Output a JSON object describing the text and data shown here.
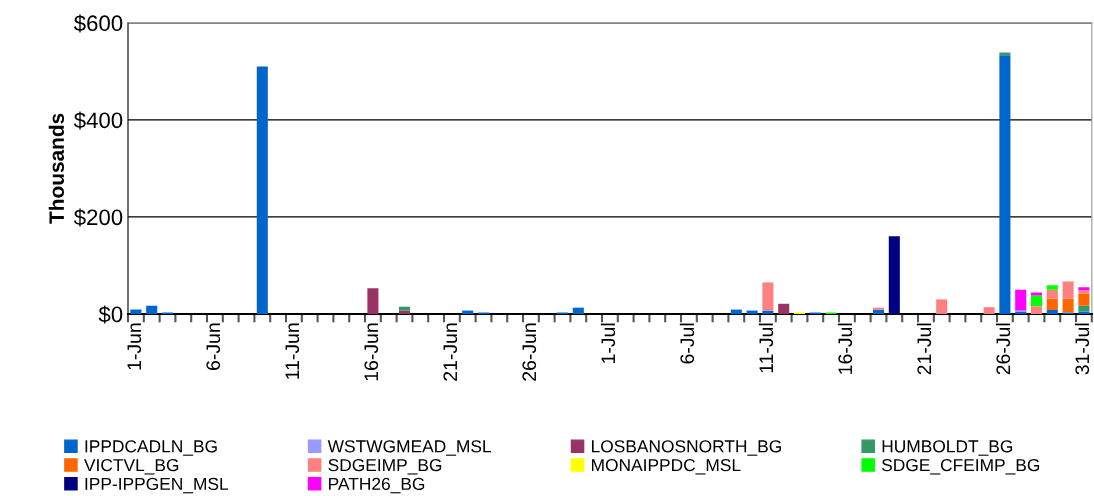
{
  "chart_data": {
    "type": "bar",
    "stacked": true,
    "ylabel": "Thousands",
    "categories": [
      "1-Jun",
      null,
      null,
      null,
      null,
      "6-Jun",
      null,
      null,
      null,
      null,
      "11-Jun",
      null,
      null,
      null,
      null,
      "16-Jun",
      null,
      null,
      null,
      null,
      "21-Jun",
      null,
      null,
      null,
      null,
      "26-Jun",
      null,
      null,
      null,
      null,
      "1-Jul",
      null,
      null,
      null,
      null,
      "6-Jul",
      null,
      null,
      null,
      null,
      "11-Jul",
      null,
      null,
      null,
      null,
      "16-Jul",
      null,
      null,
      null,
      null,
      "21-Jul",
      null,
      null,
      null,
      null,
      "26-Jul",
      null,
      null,
      null,
      null,
      "31-Jul"
    ],
    "ylim": [
      0,
      600
    ],
    "yticks": [
      {
        "value": 0,
        "label": "$0"
      },
      {
        "value": 200,
        "label": "$200"
      },
      {
        "value": 400,
        "label": "$400"
      },
      {
        "value": 600,
        "label": "$600"
      }
    ],
    "grid": "y",
    "legend": "bottom",
    "series": [
      {
        "name": "IPPDCADLN_BG",
        "color": "#0066cc",
        "values": [
          9,
          17,
          3,
          null,
          null,
          null,
          null,
          null,
          510,
          null,
          null,
          null,
          null,
          null,
          null,
          null,
          null,
          null,
          null,
          null,
          null,
          7,
          3,
          null,
          null,
          null,
          null,
          3,
          13,
          null,
          null,
          null,
          null,
          null,
          null,
          null,
          null,
          null,
          9,
          7,
          7,
          null,
          null,
          3,
          null,
          null,
          null,
          9,
          null,
          null,
          null,
          null,
          null,
          null,
          null,
          533,
          5,
          null,
          8,
          3,
          5
        ]
      },
      {
        "name": "WSTWGMEAD_MSL",
        "color": "#9999ff",
        "values": [
          null,
          null,
          null,
          null,
          null,
          null,
          null,
          null,
          null,
          null,
          null,
          null,
          null,
          null,
          null,
          null,
          null,
          null,
          null,
          null,
          null,
          null,
          null,
          null,
          null,
          null,
          null,
          null,
          null,
          null,
          null,
          null,
          null,
          null,
          null,
          null,
          null,
          null,
          null,
          null,
          null,
          null,
          null,
          null,
          null,
          null,
          null,
          null,
          null,
          null,
          null,
          null,
          null,
          null,
          null,
          null,
          2,
          null,
          null,
          null,
          null
        ]
      },
      {
        "name": "LOSBANOSNORTH_BG",
        "color": "#993366",
        "values": [
          null,
          null,
          null,
          null,
          null,
          null,
          null,
          null,
          null,
          null,
          null,
          null,
          null,
          null,
          null,
          53,
          null,
          7,
          null,
          null,
          null,
          null,
          null,
          null,
          null,
          null,
          null,
          null,
          null,
          null,
          null,
          null,
          null,
          null,
          null,
          null,
          null,
          null,
          null,
          null,
          null,
          21,
          null,
          null,
          null,
          null,
          null,
          null,
          null,
          null,
          null,
          null,
          null,
          null,
          null,
          null,
          null,
          null,
          null,
          null,
          null
        ]
      },
      {
        "name": "HUMBOLDT_BG",
        "color": "#339966",
        "values": [
          null,
          null,
          null,
          null,
          null,
          null,
          null,
          null,
          null,
          null,
          null,
          null,
          null,
          null,
          null,
          null,
          null,
          8,
          null,
          null,
          null,
          null,
          null,
          null,
          null,
          null,
          null,
          null,
          null,
          null,
          null,
          null,
          null,
          null,
          null,
          null,
          null,
          null,
          null,
          null,
          null,
          null,
          null,
          null,
          null,
          null,
          null,
          null,
          null,
          null,
          null,
          null,
          null,
          null,
          null,
          6,
          null,
          null,
          null,
          null,
          12
        ]
      },
      {
        "name": "VICTVL_BG",
        "color": "#ff6600",
        "values": [
          null,
          null,
          null,
          null,
          null,
          null,
          null,
          null,
          null,
          null,
          null,
          null,
          null,
          null,
          null,
          null,
          null,
          null,
          null,
          null,
          null,
          null,
          null,
          null,
          null,
          null,
          null,
          null,
          null,
          null,
          null,
          null,
          null,
          null,
          null,
          null,
          null,
          null,
          null,
          null,
          null,
          null,
          null,
          null,
          null,
          null,
          null,
          null,
          null,
          null,
          null,
          null,
          null,
          null,
          null,
          null,
          null,
          null,
          24,
          29,
          25
        ]
      },
      {
        "name": "SDGEIMP_BG",
        "color": "#ff8080",
        "values": [
          null,
          null,
          null,
          null,
          null,
          null,
          null,
          null,
          null,
          null,
          null,
          null,
          null,
          null,
          null,
          null,
          null,
          null,
          null,
          null,
          null,
          null,
          null,
          null,
          null,
          null,
          null,
          null,
          null,
          null,
          null,
          null,
          null,
          null,
          null,
          null,
          null,
          null,
          null,
          null,
          58,
          null,
          null,
          null,
          null,
          null,
          null,
          4,
          null,
          null,
          null,
          30,
          null,
          null,
          14,
          null,
          null,
          16,
          18,
          35,
          7
        ]
      },
      {
        "name": "MONAIPPDC_MSL",
        "color": "#ffff00",
        "values": [
          null,
          null,
          null,
          null,
          null,
          null,
          null,
          null,
          null,
          null,
          null,
          null,
          null,
          null,
          null,
          null,
          null,
          null,
          null,
          null,
          null,
          null,
          null,
          null,
          null,
          null,
          null,
          null,
          null,
          null,
          null,
          null,
          null,
          null,
          null,
          null,
          null,
          null,
          null,
          null,
          null,
          null,
          3,
          null,
          null,
          null,
          null,
          null,
          null,
          null,
          null,
          null,
          null,
          null,
          null,
          null,
          null,
          null,
          null,
          null,
          null
        ]
      },
      {
        "name": "SDGE_CFEIMP_BG",
        "color": "#00ff00",
        "values": [
          null,
          null,
          null,
          null,
          null,
          null,
          null,
          null,
          null,
          null,
          null,
          null,
          null,
          null,
          null,
          null,
          null,
          null,
          null,
          null,
          null,
          null,
          null,
          null,
          null,
          null,
          null,
          null,
          null,
          null,
          null,
          null,
          null,
          null,
          null,
          null,
          null,
          null,
          null,
          null,
          null,
          null,
          null,
          null,
          3,
          null,
          null,
          null,
          null,
          null,
          null,
          null,
          null,
          null,
          null,
          null,
          null,
          22,
          9,
          null,
          null
        ]
      },
      {
        "name": "IPP-IPPGEN_MSL",
        "color": "#000080",
        "values": [
          null,
          null,
          null,
          null,
          null,
          null,
          null,
          null,
          null,
          null,
          null,
          null,
          null,
          null,
          null,
          null,
          null,
          null,
          null,
          null,
          null,
          null,
          null,
          null,
          null,
          null,
          null,
          null,
          null,
          null,
          null,
          null,
          null,
          null,
          null,
          null,
          null,
          null,
          null,
          null,
          null,
          null,
          null,
          null,
          null,
          null,
          null,
          null,
          160,
          null,
          null,
          null,
          null,
          null,
          null,
          null,
          null,
          null,
          null,
          null,
          null
        ]
      },
      {
        "name": "PATH26_BG",
        "color": "#ff00ff",
        "values": [
          null,
          null,
          null,
          null,
          null,
          null,
          null,
          null,
          null,
          null,
          null,
          null,
          null,
          null,
          null,
          null,
          null,
          null,
          null,
          null,
          null,
          null,
          null,
          null,
          null,
          null,
          null,
          null,
          null,
          null,
          null,
          null,
          null,
          null,
          null,
          null,
          null,
          null,
          null,
          null,
          null,
          null,
          null,
          null,
          null,
          null,
          null,
          null,
          null,
          null,
          null,
          null,
          null,
          null,
          null,
          null,
          43,
          6,
          null,
          null,
          6
        ]
      }
    ]
  }
}
